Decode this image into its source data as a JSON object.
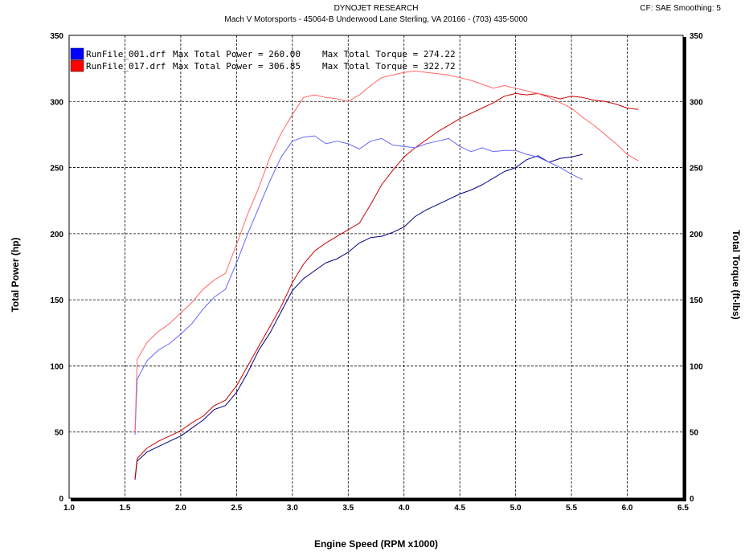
{
  "header": {
    "title": "DYNOJET RESEARCH",
    "subtitle": "Mach V Motorsports - 45064-B Underwood Lane   Sterling, VA  20166 - (703) 435-5000",
    "settings": "CF: SAE  Smoothing: 5"
  },
  "legend": [
    {
      "file": "RunFile_001.drf",
      "power_label": "Max Total Power = 260.00",
      "torque_label": "Max Total Torque = 274.22",
      "color": "#0000ff"
    },
    {
      "file": "RunFile_017.drf",
      "power_label": "Max Total Power = 306.85",
      "torque_label": "Max Total Torque = 322.72",
      "color": "#ff0000"
    }
  ],
  "chart_data": {
    "type": "line",
    "xlabel": "Engine Speed (RPM x1000)",
    "ylabel_left": "Total Power (hp)",
    "ylabel_right": "Total Torque (ft-lbs)",
    "xlim": [
      1.0,
      6.5
    ],
    "ylim": [
      0,
      350
    ],
    "x_ticks": [
      "1.0",
      "1.5",
      "2.0",
      "2.5",
      "3.0",
      "3.5",
      "4.0",
      "4.5",
      "5.0",
      "5.5",
      "6.0",
      "6.5"
    ],
    "y_ticks": [
      "0",
      "50",
      "100",
      "150",
      "200",
      "250",
      "300",
      "350"
    ],
    "grid": true,
    "legend_position": "top-left",
    "series": [
      {
        "name": "RunFile_001.drf Max Total Power = 260.00",
        "measure": "power",
        "color": "#000080",
        "x": [
          1.59,
          1.61,
          1.7,
          1.8,
          1.9,
          2.0,
          2.1,
          2.2,
          2.3,
          2.4,
          2.5,
          2.6,
          2.7,
          2.8,
          2.9,
          3.0,
          3.1,
          3.2,
          3.3,
          3.4,
          3.5,
          3.6,
          3.7,
          3.8,
          3.9,
          4.0,
          4.1,
          4.2,
          4.3,
          4.4,
          4.5,
          4.6,
          4.7,
          4.8,
          4.9,
          5.0,
          5.1,
          5.2,
          5.3,
          5.4,
          5.5,
          5.6
        ],
        "y": [
          14,
          28,
          35,
          39,
          43,
          47,
          53,
          59,
          67,
          70,
          80,
          95,
          112,
          125,
          141,
          157,
          166,
          172,
          178,
          181,
          186,
          193,
          197,
          198,
          201,
          205,
          213,
          218,
          222,
          226,
          230,
          233,
          237,
          242,
          247,
          250,
          256,
          259,
          254,
          257,
          258,
          260
        ]
      },
      {
        "name": "RunFile_017.drf Max Total Power = 306.85",
        "measure": "power",
        "color": "#cc0000",
        "x": [
          1.59,
          1.61,
          1.7,
          1.8,
          1.9,
          2.0,
          2.1,
          2.2,
          2.3,
          2.4,
          2.5,
          2.6,
          2.7,
          2.8,
          2.9,
          3.0,
          3.1,
          3.2,
          3.3,
          3.4,
          3.5,
          3.6,
          3.7,
          3.8,
          3.9,
          4.0,
          4.1,
          4.2,
          4.3,
          4.4,
          4.5,
          4.6,
          4.7,
          4.8,
          4.9,
          5.0,
          5.1,
          5.2,
          5.3,
          5.4,
          5.5,
          5.6,
          5.7,
          5.8,
          5.9,
          6.0,
          6.1
        ],
        "y": [
          15,
          30,
          38,
          43,
          47,
          51,
          57,
          62,
          70,
          74,
          85,
          100,
          115,
          130,
          145,
          163,
          177,
          187,
          193,
          198,
          203,
          208,
          222,
          237,
          248,
          258,
          265,
          271,
          277,
          282,
          287,
          291,
          295,
          299,
          304,
          306,
          305,
          306,
          304,
          302,
          304,
          303,
          301,
          300,
          298,
          295,
          294
        ]
      },
      {
        "name": "RunFile_001.drf Max Total Torque = 274.22",
        "measure": "torque",
        "color": "#6666ff",
        "x": [
          1.59,
          1.61,
          1.7,
          1.8,
          1.9,
          2.0,
          2.1,
          2.2,
          2.3,
          2.4,
          2.5,
          2.6,
          2.7,
          2.8,
          2.9,
          3.0,
          3.1,
          3.2,
          3.3,
          3.4,
          3.5,
          3.6,
          3.7,
          3.8,
          3.9,
          4.0,
          4.1,
          4.2,
          4.3,
          4.4,
          4.5,
          4.6,
          4.7,
          4.8,
          4.9,
          5.0,
          5.1,
          5.2,
          5.3,
          5.4,
          5.5,
          5.6
        ],
        "y": [
          48,
          90,
          104,
          112,
          117,
          124,
          132,
          143,
          152,
          158,
          178,
          200,
          220,
          240,
          258,
          270,
          273,
          274,
          268,
          270,
          268,
          264,
          270,
          272,
          267,
          266,
          265,
          268,
          270,
          272,
          266,
          262,
          265,
          262,
          263,
          263,
          260,
          258,
          254,
          250,
          245,
          241
        ]
      },
      {
        "name": "RunFile_017.drf Max Total Torque = 322.72",
        "measure": "torque",
        "color": "#ff6666",
        "x": [
          1.59,
          1.61,
          1.7,
          1.8,
          1.9,
          2.0,
          2.1,
          2.2,
          2.3,
          2.4,
          2.5,
          2.6,
          2.7,
          2.8,
          2.9,
          3.0,
          3.1,
          3.2,
          3.3,
          3.4,
          3.5,
          3.6,
          3.7,
          3.8,
          3.9,
          4.0,
          4.1,
          4.2,
          4.3,
          4.4,
          4.5,
          4.6,
          4.7,
          4.8,
          4.9,
          5.0,
          5.1,
          5.2,
          5.3,
          5.4,
          5.5,
          5.6,
          5.7,
          5.8,
          5.9,
          6.0,
          6.1
        ],
        "y": [
          50,
          105,
          118,
          126,
          132,
          140,
          148,
          158,
          165,
          170,
          192,
          215,
          235,
          258,
          276,
          290,
          303,
          305,
          303,
          302,
          300,
          305,
          312,
          318,
          320,
          322,
          323,
          322,
          321,
          320,
          318,
          316,
          313,
          310,
          312,
          310,
          308,
          306,
          303,
          299,
          295,
          288,
          282,
          275,
          268,
          260,
          255
        ]
      }
    ]
  }
}
